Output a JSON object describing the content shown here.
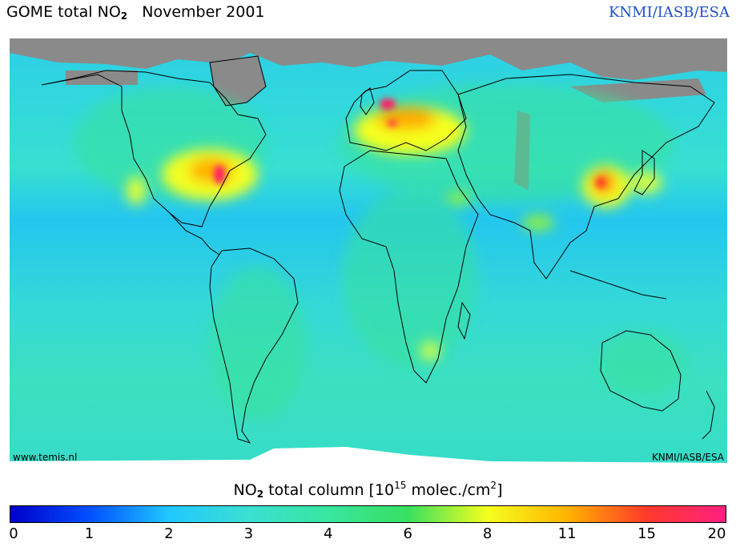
{
  "header": {
    "title_prefix": "GOME total NO",
    "title_subscript": "2",
    "title_date": "November 2001",
    "credit": "KNMI/IASB/ESA"
  },
  "map": {
    "watermark_left": "www.temis.nl",
    "watermark_right": "KNMI/IASB/ESA",
    "colors": {
      "ocean": "#33ddd4",
      "no_data": "#8a8a8a",
      "coastline": "#000000"
    },
    "hotspots": [
      {
        "name": "Eastern USA",
        "level": "high"
      },
      {
        "name": "Western Europe",
        "level": "high"
      },
      {
        "name": "Eastern China",
        "level": "high"
      },
      {
        "name": "Japan",
        "level": "medium"
      },
      {
        "name": "California",
        "level": "medium"
      },
      {
        "name": "South Africa",
        "level": "medium"
      }
    ]
  },
  "colorbar": {
    "title_prefix": "NO",
    "title_subscript": "2",
    "title_mid": " total column [10",
    "title_superscript": "15",
    "title_suffix": " molec./cm",
    "title_sup2": "2",
    "title_end": "]",
    "ticks": [
      "0",
      "1",
      "2",
      "3",
      "4",
      "6",
      "8",
      "11",
      "15",
      "20"
    ],
    "stops": [
      "#0000c8",
      "#0050ff",
      "#22c8ff",
      "#3ae0d2",
      "#38e6a0",
      "#38e060",
      "#f5ff1e",
      "#ffb400",
      "#ff3a2a",
      "#ff2080"
    ]
  }
}
